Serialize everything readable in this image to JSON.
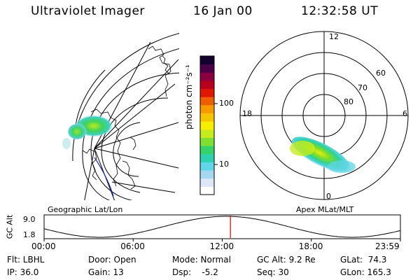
{
  "header": {
    "instrument": "Ultraviolet Imager",
    "date": "16 Jan 00",
    "time": "12:32:58 UT"
  },
  "colorbar": {
    "unit_label": "photon cm⁻²s⁻¹",
    "ticks": [
      {
        "label": "100",
        "value": 100
      },
      {
        "label": "10",
        "value": 10
      }
    ],
    "colors": [
      "#ffffff",
      "#dde7f5",
      "#a5d7f0",
      "#62d6e8",
      "#2ed1b0",
      "#35d36a",
      "#7fe033",
      "#c6ec1e",
      "#f6ef00",
      "#f7c400",
      "#f69a00",
      "#ef5e00",
      "#e01600",
      "#b8001e",
      "#8a0040",
      "#4b0048",
      "#13002f"
    ]
  },
  "panels": {
    "geo_label": "Geographic Lat/Lon",
    "polar_label": "Apex MLat/MLT",
    "polar_mlt": {
      "top": "12",
      "left": "18",
      "right": "6",
      "bottom": "0"
    },
    "polar_lat": [
      "60",
      "70",
      "80"
    ]
  },
  "timeline": {
    "ylabel": "GC Alt",
    "ymax": "9.0",
    "ymin": "1.8",
    "xticks": [
      "00:00",
      "06:00",
      "12:00",
      "18:00",
      "23:59"
    ],
    "current_time_hours": 12.55
  },
  "info": {
    "flt": "Flt: LBHL",
    "ip": "IP: 36.0",
    "door": "Door: Open",
    "gain": "Gain: 13",
    "mode": "Mode: Normal",
    "dsp": "Dsp:    -5.2",
    "gcalt": "GC Alt: 9.2 Re",
    "seq": "Seq: 30",
    "glat": "GLat:  74.3",
    "glon": "GLon: 165.3"
  },
  "colors": {
    "cursor": "#e00000"
  }
}
